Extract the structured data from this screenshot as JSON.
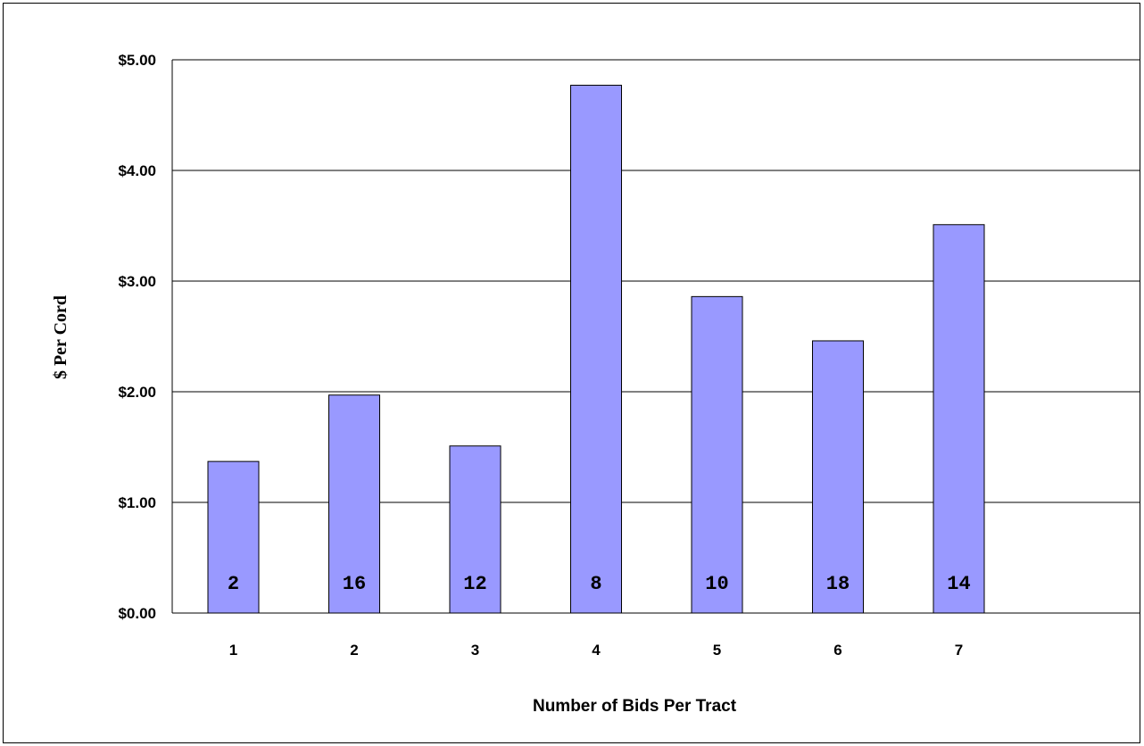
{
  "chart_data": {
    "type": "bar",
    "categories": [
      "1",
      "2",
      "3",
      "4",
      "5",
      "6",
      "7"
    ],
    "values": [
      1.37,
      1.97,
      1.51,
      4.77,
      2.86,
      2.46,
      3.51
    ],
    "bar_labels": [
      "2",
      "16",
      "12",
      "8",
      "10",
      "18",
      "14"
    ],
    "ylim": [
      0,
      5
    ],
    "y_ticks": [
      "$0.00",
      "$1.00",
      "$2.00",
      "$3.00",
      "$4.00",
      "$5.00"
    ],
    "xlabel": "Number of Bids Per Tract",
    "ylabel": "$ Per Cord",
    "grid": true,
    "bar_color": "#9999ff"
  }
}
